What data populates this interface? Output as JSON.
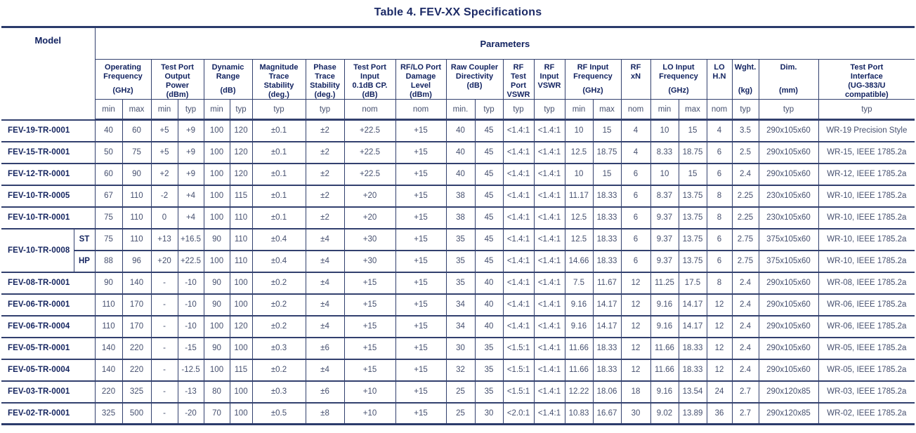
{
  "title": "Table 4. FEV-XX Specifications",
  "table": {
    "model_header": "Model",
    "parameters_header": "Parameters",
    "groups": [
      {
        "label": "Operating Frequency",
        "unit": "(GHz)",
        "span": 2
      },
      {
        "label": "Test Port Output Power",
        "unit": "(dBm)",
        "span": 2
      },
      {
        "label": "Dynamic Range",
        "unit": "(dB)",
        "span": 2
      },
      {
        "label": "Magnitude Trace Stability",
        "unit": "(deg.)",
        "span": 1
      },
      {
        "label": "Phase Trace Stability",
        "unit": "(deg.)",
        "span": 1
      },
      {
        "label": "Test Port\nInput\n0.1dB CP.",
        "unit": "(dB)",
        "span": 1
      },
      {
        "label": "RF/LO Port Damage Level",
        "unit": "(dBm)",
        "span": 1
      },
      {
        "label": "Raw Coupler Directivity (dB)",
        "unit": "",
        "span": 2
      },
      {
        "label": "RF Test Port VSWR",
        "unit": "",
        "span": 1
      },
      {
        "label": "RF Input VSWR",
        "unit": "",
        "span": 1
      },
      {
        "label": "RF Input Frequency",
        "unit": "(GHz)",
        "span": 2
      },
      {
        "label": "RF\nxN",
        "unit": "",
        "span": 1
      },
      {
        "label": "LO Input Frequency",
        "unit": "(GHz)",
        "span": 2
      },
      {
        "label": "LO\nH.N",
        "unit": "",
        "span": 1
      },
      {
        "label": "Wght.",
        "unit": "(kg)",
        "span": 1
      },
      {
        "label": "Dim.",
        "unit": "(mm)",
        "span": 1
      },
      {
        "label": "Test Port\nInterface",
        "unit": "(UG-383/U\ncompatible)",
        "span": 1
      }
    ],
    "subs": [
      "min",
      "max",
      "min",
      "typ",
      "min",
      "typ",
      "typ",
      "typ",
      "nom",
      "nom",
      "min.",
      "typ",
      "typ",
      "typ",
      "min",
      "max",
      "nom",
      "min",
      "max",
      "nom",
      "typ",
      "typ",
      "typ"
    ],
    "rows": [
      {
        "model": "FEV-19-TR-0001",
        "variant": null,
        "values": [
          "40",
          "60",
          "+5",
          "+9",
          "100",
          "120",
          "±0.1",
          "±2",
          "+22.5",
          "+15",
          "40",
          "45",
          "<1.4:1",
          "<1.4:1",
          "10",
          "15",
          "4",
          "10",
          "15",
          "4",
          "3.5",
          "290x105x60",
          "WR-19 Precision Style"
        ]
      },
      {
        "model": "FEV-15-TR-0001",
        "variant": null,
        "values": [
          "50",
          "75",
          "+5",
          "+9",
          "100",
          "120",
          "±0.1",
          "±2",
          "+22.5",
          "+15",
          "40",
          "45",
          "<1.4:1",
          "<1.4:1",
          "12.5",
          "18.75",
          "4",
          "8.33",
          "18.75",
          "6",
          "2.5",
          "290x105x60",
          "WR-15, IEEE 1785.2a"
        ]
      },
      {
        "model": "FEV-12-TR-0001",
        "variant": null,
        "values": [
          "60",
          "90",
          "+2",
          "+9",
          "100",
          "120",
          "±0.1",
          "±2",
          "+22.5",
          "+15",
          "40",
          "45",
          "<1.4:1",
          "<1.4:1",
          "10",
          "15",
          "6",
          "10",
          "15",
          "6",
          "2.4",
          "290x105x60",
          "WR-12, IEEE 1785.2a"
        ]
      },
      {
        "model": "FEV-10-TR-0005",
        "variant": null,
        "values": [
          "67",
          "110",
          "-2",
          "+4",
          "100",
          "115",
          "±0.1",
          "±2",
          "+20",
          "+15",
          "38",
          "45",
          "<1.4:1",
          "<1.4:1",
          "11.17",
          "18.33",
          "6",
          "8.37",
          "13.75",
          "8",
          "2.25",
          "230x105x60",
          "WR-10, IEEE 1785.2a"
        ]
      },
      {
        "model": "FEV-10-TR-0001",
        "variant": null,
        "values": [
          "75",
          "110",
          "0",
          "+4",
          "100",
          "110",
          "±0.1",
          "±2",
          "+20",
          "+15",
          "38",
          "45",
          "<1.4:1",
          "<1.4:1",
          "12.5",
          "18.33",
          "6",
          "9.37",
          "13.75",
          "8",
          "2.25",
          "230x105x60",
          "WR-10, IEEE 1785.2a"
        ]
      },
      {
        "model": "FEV-10-TR-0008",
        "variant": "ST",
        "values": [
          "75",
          "110",
          "+13",
          "+16.5",
          "90",
          "110",
          "±0.4",
          "±4",
          "+30",
          "+15",
          "35",
          "45",
          "<1.4:1",
          "<1.4:1",
          "12.5",
          "18.33",
          "6",
          "9.37",
          "13.75",
          "6",
          "2.75",
          "375x105x60",
          "WR-10, IEEE 1785.2a"
        ]
      },
      {
        "model": null,
        "variant": "HP",
        "values": [
          "88",
          "96",
          "+20",
          "+22.5",
          "100",
          "110",
          "±0.4",
          "±4",
          "+30",
          "+15",
          "35",
          "45",
          "<1.4:1",
          "<1.4:1",
          "14.66",
          "18.33",
          "6",
          "9.37",
          "13.75",
          "6",
          "2.75",
          "375x105x60",
          "WR-10, IEEE 1785.2a"
        ]
      },
      {
        "model": "FEV-08-TR-0001",
        "variant": null,
        "values": [
          "90",
          "140",
          "-",
          "-10",
          "90",
          "100",
          "±0.2",
          "±4",
          "+15",
          "+15",
          "35",
          "40",
          "<1.4:1",
          "<1.4:1",
          "7.5",
          "11.67",
          "12",
          "11.25",
          "17.5",
          "8",
          "2.4",
          "290x105x60",
          "WR-08, IEEE 1785.2a"
        ]
      },
      {
        "model": "FEV-06-TR-0001",
        "variant": null,
        "values": [
          "110",
          "170",
          "-",
          "-10",
          "90",
          "100",
          "±0.2",
          "±4",
          "+15",
          "+15",
          "34",
          "40",
          "<1.4:1",
          "<1.4:1",
          "9.16",
          "14.17",
          "12",
          "9.16",
          "14.17",
          "12",
          "2.4",
          "290x105x60",
          "WR-06, IEEE 1785.2a"
        ]
      },
      {
        "model": "FEV-06-TR-0004",
        "variant": null,
        "values": [
          "110",
          "170",
          "-",
          "-10",
          "100",
          "120",
          "±0.2",
          "±4",
          "+15",
          "+15",
          "34",
          "40",
          "<1.4:1",
          "<1.4:1",
          "9.16",
          "14.17",
          "12",
          "9.16",
          "14.17",
          "12",
          "2.4",
          "290x105x60",
          "WR-06, IEEE 1785.2a"
        ]
      },
      {
        "model": "FEV-05-TR-0001",
        "variant": null,
        "values": [
          "140",
          "220",
          "-",
          "-15",
          "90",
          "100",
          "±0.3",
          "±6",
          "+15",
          "+15",
          "30",
          "35",
          "<1.5:1",
          "<1.4:1",
          "11.66",
          "18.33",
          "12",
          "11.66",
          "18.33",
          "12",
          "2.4",
          "290x105x60",
          "WR-05, IEEE 1785.2a"
        ]
      },
      {
        "model": "FEV-05-TR-0004",
        "variant": null,
        "values": [
          "140",
          "220",
          "-",
          "-12.5",
          "100",
          "115",
          "±0.2",
          "±4",
          "+15",
          "+15",
          "32",
          "35",
          "<1.5:1",
          "<1.4:1",
          "11.66",
          "18.33",
          "12",
          "11.66",
          "18.33",
          "12",
          "2.4",
          "290x105x60",
          "WR-05, IEEE 1785.2a"
        ]
      },
      {
        "model": "FEV-03-TR-0001",
        "variant": null,
        "values": [
          "220",
          "325",
          "-",
          "-13",
          "80",
          "100",
          "±0.3",
          "±6",
          "+10",
          "+15",
          "25",
          "35",
          "<1.5:1",
          "<1.4:1",
          "12.22",
          "18.06",
          "18",
          "9.16",
          "13.54",
          "24",
          "2.7",
          "290x120x85",
          "WR-03, IEEE 1785.2a"
        ]
      },
      {
        "model": "FEV-02-TR-0001",
        "variant": null,
        "values": [
          "325",
          "500",
          "-",
          "-20",
          "70",
          "100",
          "±0.5",
          "±8",
          "+10",
          "+15",
          "25",
          "30",
          "<2.0:1",
          "<1.4:1",
          "10.83",
          "16.67",
          "30",
          "9.02",
          "13.89",
          "36",
          "2.7",
          "290x120x85",
          "WR-02, IEEE 1785.2a"
        ]
      }
    ]
  }
}
